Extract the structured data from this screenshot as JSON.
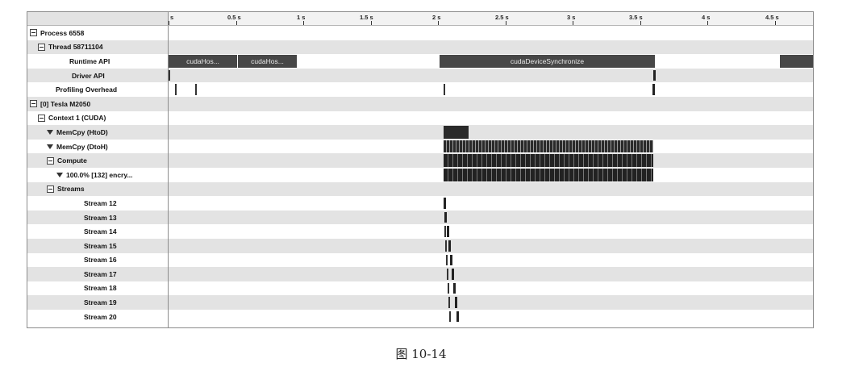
{
  "ruler": {
    "ticks": [
      "s",
      "0.5 s",
      "1 s",
      "1.5 s",
      "2 s",
      "2.5 s",
      "3 s",
      "3.5 s",
      "4 s",
      "4.5 s"
    ]
  },
  "tree": {
    "rows": [
      {
        "label": "Process 6558",
        "icon": "minus-box"
      },
      {
        "label": "Thread 58711104",
        "icon": "minus-box"
      },
      {
        "label": "Runtime API",
        "icon": "none"
      },
      {
        "label": "Driver API",
        "icon": "none"
      },
      {
        "label": "Profiling Overhead",
        "icon": "none"
      },
      {
        "label": "[0] Tesla M2050",
        "icon": "minus-box"
      },
      {
        "label": "Context 1 (CUDA)",
        "icon": "minus-box"
      },
      {
        "label": "MemCpy (HtoD)",
        "icon": "filter"
      },
      {
        "label": "MemCpy (DtoH)",
        "icon": "filter"
      },
      {
        "label": "Compute",
        "icon": "minus-box"
      },
      {
        "label": "100.0% [132] encry...",
        "icon": "filter"
      },
      {
        "label": "Streams",
        "icon": "minus-box"
      },
      {
        "label": "Stream 12",
        "icon": "none"
      },
      {
        "label": "Stream 13",
        "icon": "none"
      },
      {
        "label": "Stream 14",
        "icon": "none"
      },
      {
        "label": "Stream 15",
        "icon": "none"
      },
      {
        "label": "Stream 16",
        "icon": "none"
      },
      {
        "label": "Stream 17",
        "icon": "none"
      },
      {
        "label": "Stream 18",
        "icon": "none"
      },
      {
        "label": "Stream 19",
        "icon": "none"
      },
      {
        "label": "Stream 20",
        "icon": "none"
      }
    ]
  },
  "timeline": {
    "runtime_api": {
      "bar1_label": "cudaHos...",
      "bar2_label": "cudaHos...",
      "bar3_label": "cudaDeviceSynchronize"
    }
  },
  "caption": "图    10-14"
}
